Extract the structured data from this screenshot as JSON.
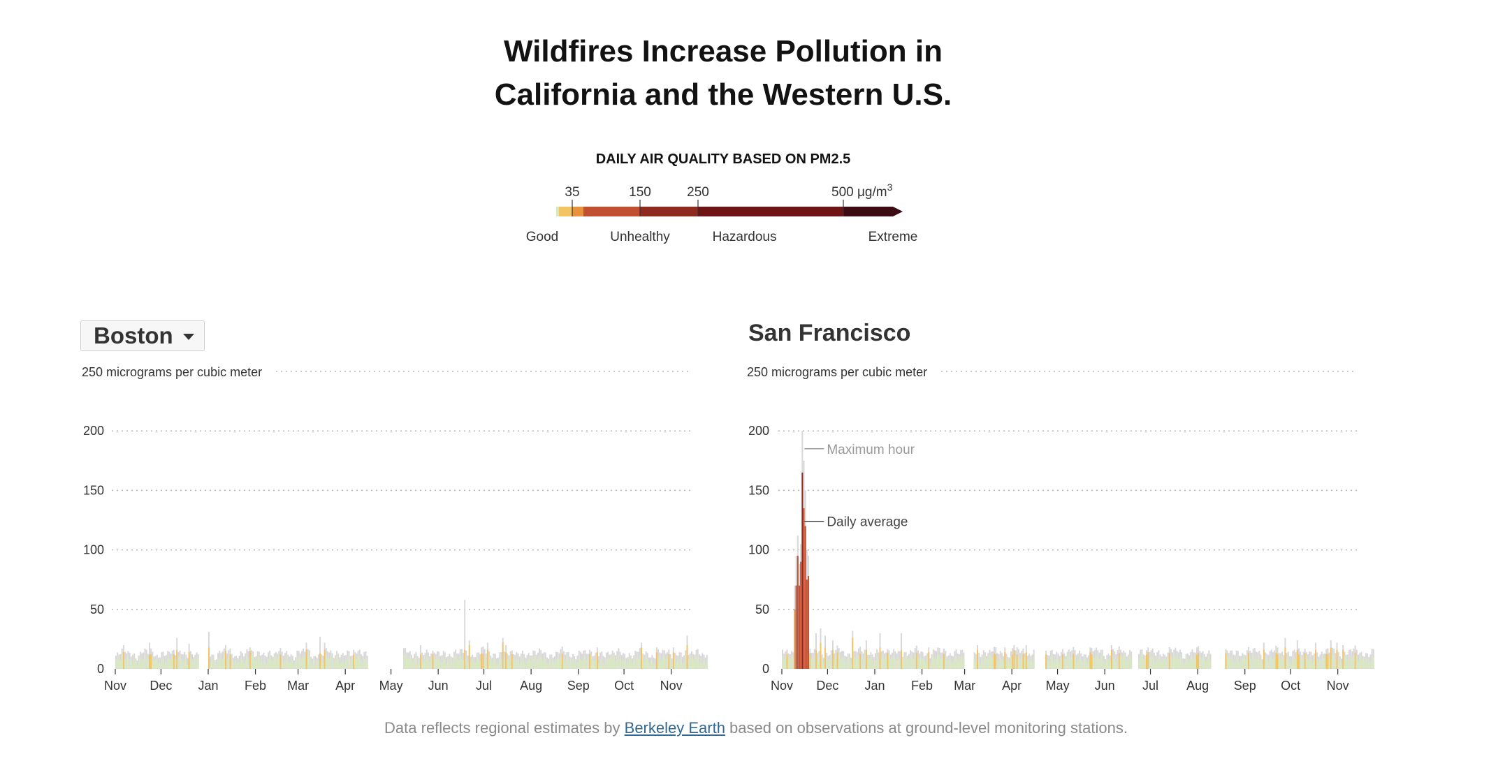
{
  "header": {
    "title_line1": "Wildfires Increase Pollution in",
    "title_line2": "California and the Western U.S."
  },
  "legend": {
    "title": "DAILY AIR QUALITY BASED ON PM2.5",
    "ticks": [
      {
        "value": 35,
        "label": "35"
      },
      {
        "value": 150,
        "label": "150"
      },
      {
        "value": 250,
        "label": "250"
      },
      {
        "value": 500,
        "label": "500 μg/m"
      }
    ],
    "unit_superscript": "3",
    "categories": [
      {
        "label": "Good",
        "value": 0
      },
      {
        "label": "Unhealthy",
        "value": 150
      },
      {
        "label": "Hazardous",
        "value": 330
      },
      {
        "label": "Extreme",
        "value": 540
      }
    ],
    "colors": [
      "#d9e6c3",
      "#f2c462",
      "#e8923e",
      "#c14f32",
      "#8f2a1f",
      "#6e1414",
      "#3d0b14"
    ]
  },
  "selector": {
    "selected": "Boston"
  },
  "footer": {
    "before": "Data reflects regional estimates by ",
    "link_text": "Berkeley Earth",
    "after": " based on observations at ground-level monitoring stations."
  },
  "chart_data": [
    {
      "type": "bar",
      "title": "Boston",
      "ylabel": "",
      "top_label": "250 micrograms per cubic meter",
      "ylim": [
        0,
        250
      ],
      "yticks": [
        0,
        50,
        100,
        150,
        200
      ],
      "grid": true,
      "months": [
        "Nov",
        "Dec",
        "Jan",
        "Feb",
        "Mar",
        "Apr",
        "May",
        "Jun",
        "Jul",
        "Aug",
        "Sep",
        "Oct",
        "Nov"
      ],
      "series": [
        {
          "name": "Daily average",
          "role": "daily",
          "color": "#d9e6c3"
        },
        {
          "name": "Maximum hour",
          "role": "max",
          "color": "#d8d8d8"
        }
      ],
      "daily_average_baseline": 8,
      "missing_days": [
        [
          55,
          60
        ],
        [
          166,
          188
        ]
      ],
      "peaks": [
        {
          "day": 5,
          "avg": 14,
          "max": 20
        },
        {
          "day": 22,
          "avg": 12,
          "max": 22
        },
        {
          "day": 40,
          "avg": 16,
          "max": 26
        },
        {
          "day": 48,
          "avg": 14,
          "max": 21
        },
        {
          "day": 61,
          "avg": 18,
          "max": 31
        },
        {
          "day": 72,
          "avg": 15,
          "max": 20
        },
        {
          "day": 88,
          "avg": 15,
          "max": 18
        },
        {
          "day": 125,
          "avg": 16,
          "max": 22
        },
        {
          "day": 134,
          "avg": 13,
          "max": 27
        },
        {
          "day": 137,
          "avg": 16,
          "max": 22
        },
        {
          "day": 156,
          "avg": 12,
          "max": 16
        },
        {
          "day": 200,
          "avg": 12,
          "max": 20
        },
        {
          "day": 229,
          "avg": 16,
          "max": 58
        },
        {
          "day": 232,
          "avg": 20,
          "max": 24
        },
        {
          "day": 240,
          "avg": 13,
          "max": 18
        },
        {
          "day": 244,
          "avg": 16,
          "max": 22
        },
        {
          "day": 254,
          "avg": 22,
          "max": 26
        },
        {
          "day": 256,
          "avg": 14,
          "max": 20
        },
        {
          "day": 316,
          "avg": 14,
          "max": 18
        },
        {
          "day": 345,
          "avg": 18,
          "max": 22
        },
        {
          "day": 355,
          "avg": 14,
          "max": 18
        },
        {
          "day": 366,
          "avg": 14,
          "max": 18
        },
        {
          "day": 375,
          "avg": 20,
          "max": 28
        }
      ]
    },
    {
      "type": "bar",
      "title": "San Francisco",
      "ylabel": "",
      "top_label": "250 micrograms per cubic meter",
      "ylim": [
        0,
        250
      ],
      "yticks": [
        0,
        50,
        100,
        150,
        200
      ],
      "grid": true,
      "months": [
        "Nov",
        "Dec",
        "Jan",
        "Feb",
        "Mar",
        "Apr",
        "May",
        "Jun",
        "Jul",
        "Aug",
        "Sep",
        "Oct",
        "Nov"
      ],
      "series": [
        {
          "name": "Daily average",
          "role": "daily",
          "color": "#d9e6c3"
        },
        {
          "name": "Maximum hour",
          "role": "max",
          "color": "#d8d8d8"
        }
      ],
      "annotations": [
        {
          "text": "Maximum hour",
          "day": 13,
          "value": 185
        },
        {
          "text": "Daily average",
          "day": 13,
          "value": 124
        }
      ],
      "daily_average_baseline": 9,
      "missing_days": [
        [
          120,
          125
        ],
        [
          166,
          172
        ],
        [
          230,
          233
        ],
        [
          282,
          290
        ]
      ],
      "peaks": [
        {
          "day": 8,
          "avg": 50,
          "max": 70
        },
        {
          "day": 9,
          "avg": 70,
          "max": 95
        },
        {
          "day": 10,
          "avg": 95,
          "max": 112
        },
        {
          "day": 11,
          "avg": 70,
          "max": 88
        },
        {
          "day": 12,
          "avg": 90,
          "max": 105
        },
        {
          "day": 13,
          "avg": 165,
          "max": 200
        },
        {
          "day": 14,
          "avg": 135,
          "max": 175
        },
        {
          "day": 15,
          "avg": 120,
          "max": 150
        },
        {
          "day": 16,
          "avg": 75,
          "max": 100
        },
        {
          "day": 17,
          "avg": 78,
          "max": 95
        },
        {
          "day": 22,
          "avg": 16,
          "max": 30
        },
        {
          "day": 25,
          "avg": 22,
          "max": 34
        },
        {
          "day": 28,
          "avg": 18,
          "max": 28
        },
        {
          "day": 33,
          "avg": 16,
          "max": 24
        },
        {
          "day": 46,
          "avg": 26,
          "max": 32
        },
        {
          "day": 55,
          "avg": 16,
          "max": 24
        },
        {
          "day": 64,
          "avg": 18,
          "max": 30
        },
        {
          "day": 78,
          "avg": 16,
          "max": 30
        },
        {
          "day": 96,
          "avg": 14,
          "max": 18
        },
        {
          "day": 128,
          "avg": 16,
          "max": 20
        },
        {
          "day": 146,
          "avg": 14,
          "max": 18
        },
        {
          "day": 152,
          "avg": 16,
          "max": 20
        },
        {
          "day": 160,
          "avg": 14,
          "max": 20
        },
        {
          "day": 202,
          "avg": 14,
          "max": 18
        },
        {
          "day": 216,
          "avg": 16,
          "max": 20
        },
        {
          "day": 240,
          "avg": 14,
          "max": 18
        },
        {
          "day": 316,
          "avg": 16,
          "max": 22
        },
        {
          "day": 330,
          "avg": 18,
          "max": 26
        },
        {
          "day": 338,
          "avg": 16,
          "max": 24
        },
        {
          "day": 350,
          "avg": 16,
          "max": 22
        },
        {
          "day": 360,
          "avg": 18,
          "max": 24
        },
        {
          "day": 364,
          "avg": 16,
          "max": 22
        },
        {
          "day": 368,
          "avg": 16,
          "max": 20
        }
      ]
    }
  ]
}
